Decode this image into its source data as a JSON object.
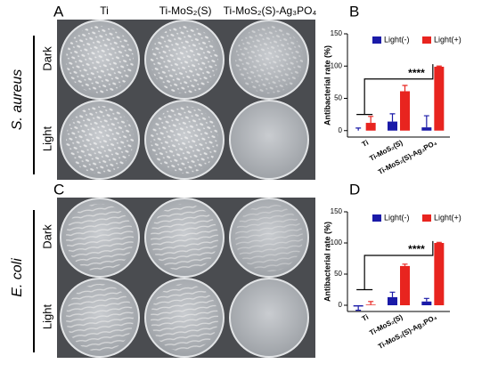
{
  "figure": {
    "panels": [
      "A",
      "B",
      "C",
      "D"
    ],
    "columns": [
      "Ti",
      "Ti-MoS₂(S)",
      "Ti-MoS₂(S)-Ag₃PO₄"
    ],
    "rows": [
      "Dark",
      "Light"
    ],
    "organisms": [
      "S. aureus",
      "E. coli"
    ]
  },
  "chart_data": [
    {
      "type": "bar",
      "categories": [
        "Ti",
        "Ti-MoS₂(S)",
        "Ti-MoS₂(S)-Ag₃PO₄"
      ],
      "series": [
        {
          "name": "Light(-)",
          "color": "#1a1aa8",
          "values": [
            0,
            14,
            5
          ],
          "errors": [
            4,
            12,
            18
          ]
        },
        {
          "name": "Light(+)",
          "color": "#e8241f",
          "values": [
            12,
            61,
            99
          ],
          "errors": [
            10,
            9,
            1
          ]
        }
      ],
      "ylim": [
        -10,
        150
      ],
      "yticks": [
        0,
        50,
        100,
        150
      ],
      "ylabel": "Antibacterial rate (%)",
      "annotation": "****",
      "legend": "top"
    },
    {
      "type": "bar",
      "categories": [
        "Ti",
        "Ti-MoS₂(S)",
        "Ti-MoS₂(S)-Ag₃PO₄"
      ],
      "series": [
        {
          "name": "Light(-)",
          "color": "#1a1aa8",
          "values": [
            -2,
            13,
            6
          ],
          "errors": [
            6,
            8,
            5
          ]
        },
        {
          "name": "Light(+)",
          "color": "#e8241f",
          "values": [
            1,
            63,
            100
          ],
          "errors": [
            5,
            3,
            1
          ]
        }
      ],
      "ylim": [
        -10,
        150
      ],
      "yticks": [
        0,
        50,
        100,
        150
      ],
      "ylabel": "Antibacterial rate (%)",
      "annotation": "****",
      "legend": "top"
    }
  ]
}
